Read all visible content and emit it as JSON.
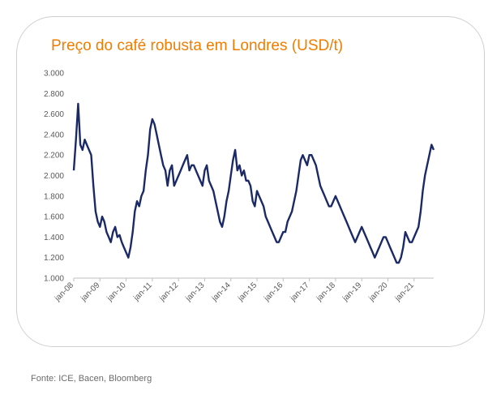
{
  "chart_data": {
    "type": "line",
    "title": "Preço do café robusta em Londres (USD/t)",
    "ylim": [
      1000,
      3000
    ],
    "y_ticks": [
      "3.000",
      "2.800",
      "2.600",
      "2.400",
      "2.200",
      "2.000",
      "1.800",
      "1.600",
      "1.400",
      "1.200",
      "1.000"
    ],
    "y_tick_values": [
      3000,
      2800,
      2600,
      2400,
      2200,
      2000,
      1800,
      1600,
      1400,
      1200,
      1000
    ],
    "x_ticks": [
      "jan-08",
      "jan-09",
      "jan-10",
      "jan-11",
      "jan-12",
      "jan-13",
      "jan-14",
      "jan-15",
      "jan-16",
      "jan-17",
      "jan-18",
      "jan-19",
      "jan-20",
      "jan-21"
    ],
    "xlim": [
      "2008-01",
      "2021-10"
    ],
    "grid": false,
    "line_color": "#1b2a66",
    "series": [
      {
        "x": [
          "2008-01",
          "2008-02",
          "2008-03",
          "2008-04",
          "2008-05",
          "2008-06",
          "2008-07",
          "2008-08",
          "2008-09",
          "2008-10",
          "2008-11",
          "2008-12",
          "2009-01",
          "2009-02",
          "2009-03",
          "2009-04",
          "2009-05",
          "2009-06",
          "2009-07",
          "2009-08",
          "2009-09",
          "2009-10",
          "2009-11",
          "2009-12",
          "2010-01",
          "2010-02",
          "2010-03",
          "2010-04",
          "2010-05",
          "2010-06",
          "2010-07",
          "2010-08",
          "2010-09",
          "2010-10",
          "2010-11",
          "2010-12",
          "2011-01",
          "2011-02",
          "2011-03",
          "2011-04",
          "2011-05",
          "2011-06",
          "2011-07",
          "2011-08",
          "2011-09",
          "2011-10",
          "2011-11",
          "2011-12",
          "2012-01",
          "2012-02",
          "2012-03",
          "2012-04",
          "2012-05",
          "2012-06",
          "2012-07",
          "2012-08",
          "2012-09",
          "2012-10",
          "2012-11",
          "2012-12",
          "2013-01",
          "2013-02",
          "2013-03",
          "2013-04",
          "2013-05",
          "2013-06",
          "2013-07",
          "2013-08",
          "2013-09",
          "2013-10",
          "2013-11",
          "2013-12",
          "2014-01",
          "2014-02",
          "2014-03",
          "2014-04",
          "2014-05",
          "2014-06",
          "2014-07",
          "2014-08",
          "2014-09",
          "2014-10",
          "2014-11",
          "2014-12",
          "2015-01",
          "2015-02",
          "2015-03",
          "2015-04",
          "2015-05",
          "2015-06",
          "2015-07",
          "2015-08",
          "2015-09",
          "2015-10",
          "2015-11",
          "2015-12",
          "2016-01",
          "2016-02",
          "2016-03",
          "2016-04",
          "2016-05",
          "2016-06",
          "2016-07",
          "2016-08",
          "2016-09",
          "2016-10",
          "2016-11",
          "2016-12",
          "2017-01",
          "2017-02",
          "2017-03",
          "2017-04",
          "2017-05",
          "2017-06",
          "2017-07",
          "2017-08",
          "2017-09",
          "2017-10",
          "2017-11",
          "2017-12",
          "2018-01",
          "2018-02",
          "2018-03",
          "2018-04",
          "2018-05",
          "2018-06",
          "2018-07",
          "2018-08",
          "2018-09",
          "2018-10",
          "2018-11",
          "2018-12",
          "2019-01",
          "2019-02",
          "2019-03",
          "2019-04",
          "2019-05",
          "2019-06",
          "2019-07",
          "2019-08",
          "2019-09",
          "2019-10",
          "2019-11",
          "2019-12",
          "2020-01",
          "2020-02",
          "2020-03",
          "2020-04",
          "2020-05",
          "2020-06",
          "2020-07",
          "2020-08",
          "2020-09",
          "2020-10",
          "2020-11",
          "2020-12",
          "2021-01",
          "2021-02",
          "2021-03",
          "2021-04",
          "2021-05",
          "2021-06",
          "2021-07",
          "2021-08",
          "2021-09",
          "2021-10"
        ],
        "y": [
          2050,
          2350,
          2700,
          2300,
          2250,
          2350,
          2300,
          2250,
          2200,
          1900,
          1650,
          1550,
          1500,
          1600,
          1550,
          1450,
          1400,
          1350,
          1450,
          1500,
          1400,
          1420,
          1350,
          1300,
          1250,
          1200,
          1300,
          1450,
          1650,
          1750,
          1700,
          1800,
          1850,
          2050,
          2200,
          2450,
          2550,
          2500,
          2400,
          2300,
          2200,
          2100,
          2050,
          1900,
          2050,
          2100,
          1900,
          1950,
          2000,
          2050,
          2100,
          2150,
          2200,
          2050,
          2100,
          2100,
          2050,
          2000,
          1950,
          1900,
          2050,
          2100,
          1950,
          1900,
          1850,
          1750,
          1650,
          1550,
          1500,
          1600,
          1750,
          1850,
          2000,
          2150,
          2250,
          2050,
          2100,
          2000,
          2050,
          1950,
          1950,
          1900,
          1750,
          1700,
          1850,
          1800,
          1750,
          1700,
          1600,
          1550,
          1500,
          1450,
          1400,
          1350,
          1350,
          1400,
          1450,
          1450,
          1550,
          1600,
          1650,
          1750,
          1850,
          2000,
          2150,
          2200,
          2150,
          2100,
          2200,
          2200,
          2150,
          2100,
          2000,
          1900,
          1850,
          1800,
          1750,
          1700,
          1700,
          1750,
          1800,
          1750,
          1700,
          1650,
          1600,
          1550,
          1500,
          1450,
          1400,
          1350,
          1400,
          1450,
          1500,
          1450,
          1400,
          1350,
          1300,
          1250,
          1200,
          1250,
          1300,
          1350,
          1400,
          1400,
          1350,
          1300,
          1250,
          1200,
          1150,
          1150,
          1200,
          1300,
          1450,
          1400,
          1350,
          1350,
          1400,
          1450,
          1500,
          1650,
          1850,
          2000,
          2100,
          2200,
          2300,
          2250
        ]
      }
    ]
  },
  "source": "Fonte: ICE, Bacen, Bloomberg"
}
